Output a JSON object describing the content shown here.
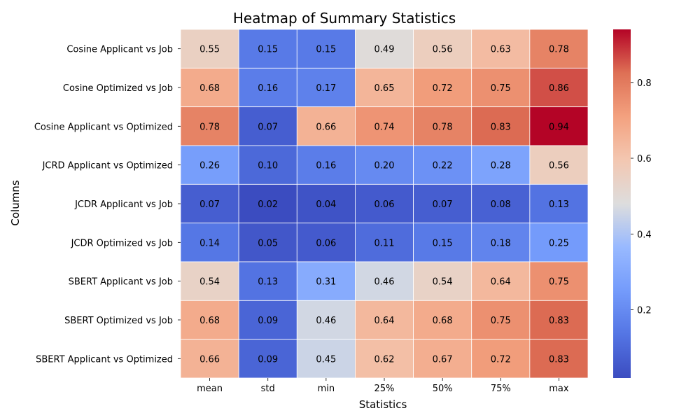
{
  "chart_data": {
    "type": "heatmap",
    "title": "Heatmap of Summary Statistics",
    "xlabel": "Statistics",
    "ylabel": "Columns",
    "columns": [
      "mean",
      "std",
      "min",
      "25%",
      "50%",
      "75%",
      "max"
    ],
    "rows": [
      "Cosine Applicant vs Job",
      "Cosine Optimized vs Job",
      "Cosine Applicant vs Optimized",
      "JCRD Applicant vs Optimized",
      "JCDR Applicant vs Job",
      "JCDR Optimized vs Job",
      "SBERT Applicant vs Job",
      "SBERT Optimized vs Job",
      "SBERT Applicant vs Optimized"
    ],
    "values": [
      [
        0.55,
        0.15,
        0.15,
        0.49,
        0.56,
        0.63,
        0.78
      ],
      [
        0.68,
        0.16,
        0.17,
        0.65,
        0.72,
        0.75,
        0.86
      ],
      [
        0.78,
        0.07,
        0.66,
        0.74,
        0.78,
        0.83,
        0.94
      ],
      [
        0.26,
        0.1,
        0.16,
        0.2,
        0.22,
        0.28,
        0.56
      ],
      [
        0.07,
        0.02,
        0.04,
        0.06,
        0.07,
        0.08,
        0.13
      ],
      [
        0.14,
        0.05,
        0.06,
        0.11,
        0.15,
        0.18,
        0.25
      ],
      [
        0.54,
        0.13,
        0.31,
        0.46,
        0.54,
        0.64,
        0.75
      ],
      [
        0.68,
        0.09,
        0.46,
        0.64,
        0.68,
        0.75,
        0.83
      ],
      [
        0.66,
        0.09,
        0.45,
        0.62,
        0.67,
        0.72,
        0.83
      ]
    ],
    "colormap": "coolwarm",
    "colorbar": {
      "range": [
        0.02,
        0.94
      ],
      "ticks": [
        0.2,
        0.4,
        0.6,
        0.8
      ],
      "tick_labels": [
        "0.2",
        "0.4",
        "0.6",
        "0.8"
      ]
    },
    "value_format": "0.00",
    "grid": false
  }
}
